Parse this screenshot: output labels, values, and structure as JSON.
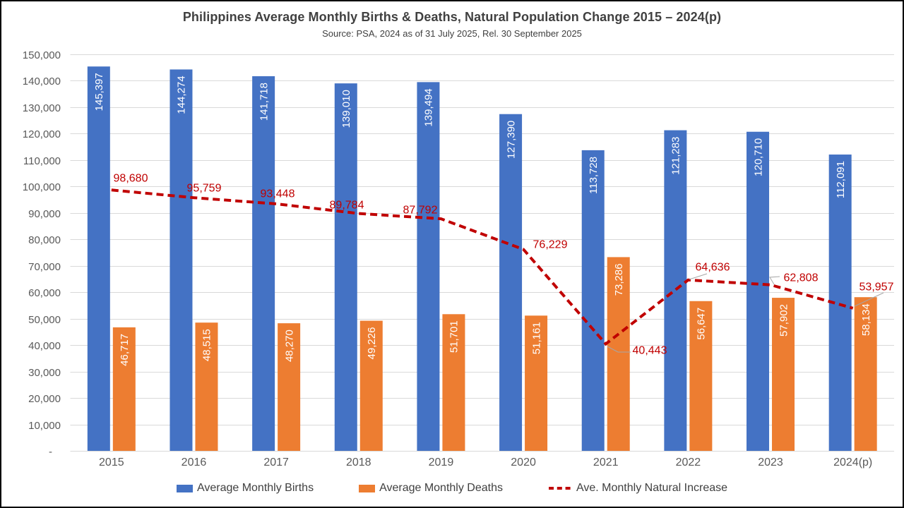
{
  "chart_data": {
    "type": "combo-bar-line",
    "title": "Philippines Average Monthly Births & Deaths, Natural Population Change 2015 – 2024(p)",
    "subtitle": "Source: PSA, 2024 as of 31 July 2025, Rel. 30 September 2025",
    "categories": [
      "2015",
      "2016",
      "2017",
      "2018",
      "2019",
      "2020",
      "2021",
      "2022",
      "2023",
      "2024(p)"
    ],
    "series": [
      {
        "name": "Average Monthly Births",
        "type": "bar",
        "color": "#4472C4",
        "values": [
          145397,
          144274,
          141718,
          139010,
          139494,
          127390,
          113728,
          121283,
          120710,
          112091
        ]
      },
      {
        "name": "Average Monthly Deaths",
        "type": "bar",
        "color": "#ED7D31",
        "values": [
          46717,
          48515,
          48270,
          49226,
          51701,
          51161,
          73286,
          56647,
          57902,
          58134
        ]
      },
      {
        "name": "Ave. Monthly Natural Increase",
        "type": "line",
        "style": "dashed",
        "color": "#C00000",
        "values": [
          98680,
          95759,
          93448,
          89784,
          87792,
          76229,
          40443,
          64636,
          62808,
          53957
        ]
      }
    ],
    "ylim": [
      0,
      150000
    ],
    "ytick_step": 10000,
    "ytick_zero_label": "-",
    "grid": true,
    "legend_position": "bottom",
    "data_labels": true
  },
  "colors": {
    "births_bar": "#4472C4",
    "deaths_bar": "#ED7D31",
    "increase_line": "#C00000",
    "gridline": "#D9D9D9",
    "axis_text": "#595959",
    "title_text": "#404040",
    "bar_label_text": "#FFFFFF",
    "leader_line": "#A6A6A6",
    "frame_border": "#000000"
  }
}
